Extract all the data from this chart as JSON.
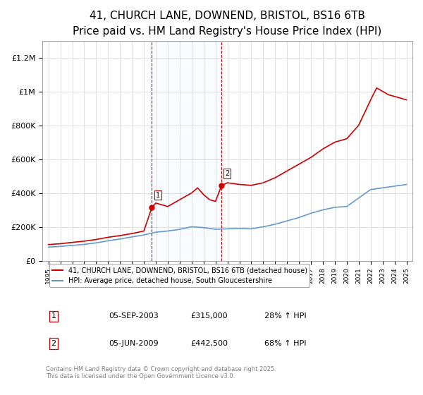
{
  "title": "41, CHURCH LANE, DOWNEND, BRISTOL, BS16 6TB",
  "subtitle": "Price paid vs. HM Land Registry's House Price Index (HPI)",
  "title_fontsize": 11,
  "subtitle_fontsize": 9,
  "red_label": "41, CHURCH LANE, DOWNEND, BRISTOL, BS16 6TB (detached house)",
  "blue_label": "HPI: Average price, detached house, South Gloucestershire",
  "footnote": "Contains HM Land Registry data © Crown copyright and database right 2025.\nThis data is licensed under the Open Government Licence v3.0.",
  "transaction1_label": "1",
  "transaction1_date": "05-SEP-2003",
  "transaction1_price": "£315,000",
  "transaction1_hpi": "28% ↑ HPI",
  "transaction2_label": "2",
  "transaction2_date": "05-JUN-2009",
  "transaction2_price": "£442,500",
  "transaction2_hpi": "68% ↑ HPI",
  "red_color": "#cc0000",
  "blue_color": "#6699cc",
  "shade_color": "#ddeeff",
  "ylim_max": 1300000,
  "ylabel_ticks": [
    0,
    200000,
    400000,
    600000,
    800000,
    1000000,
    1200000
  ],
  "ylabel_labels": [
    "£0",
    "£200K",
    "£400K",
    "£600K",
    "£800K",
    "£1M",
    "£1.2M"
  ]
}
